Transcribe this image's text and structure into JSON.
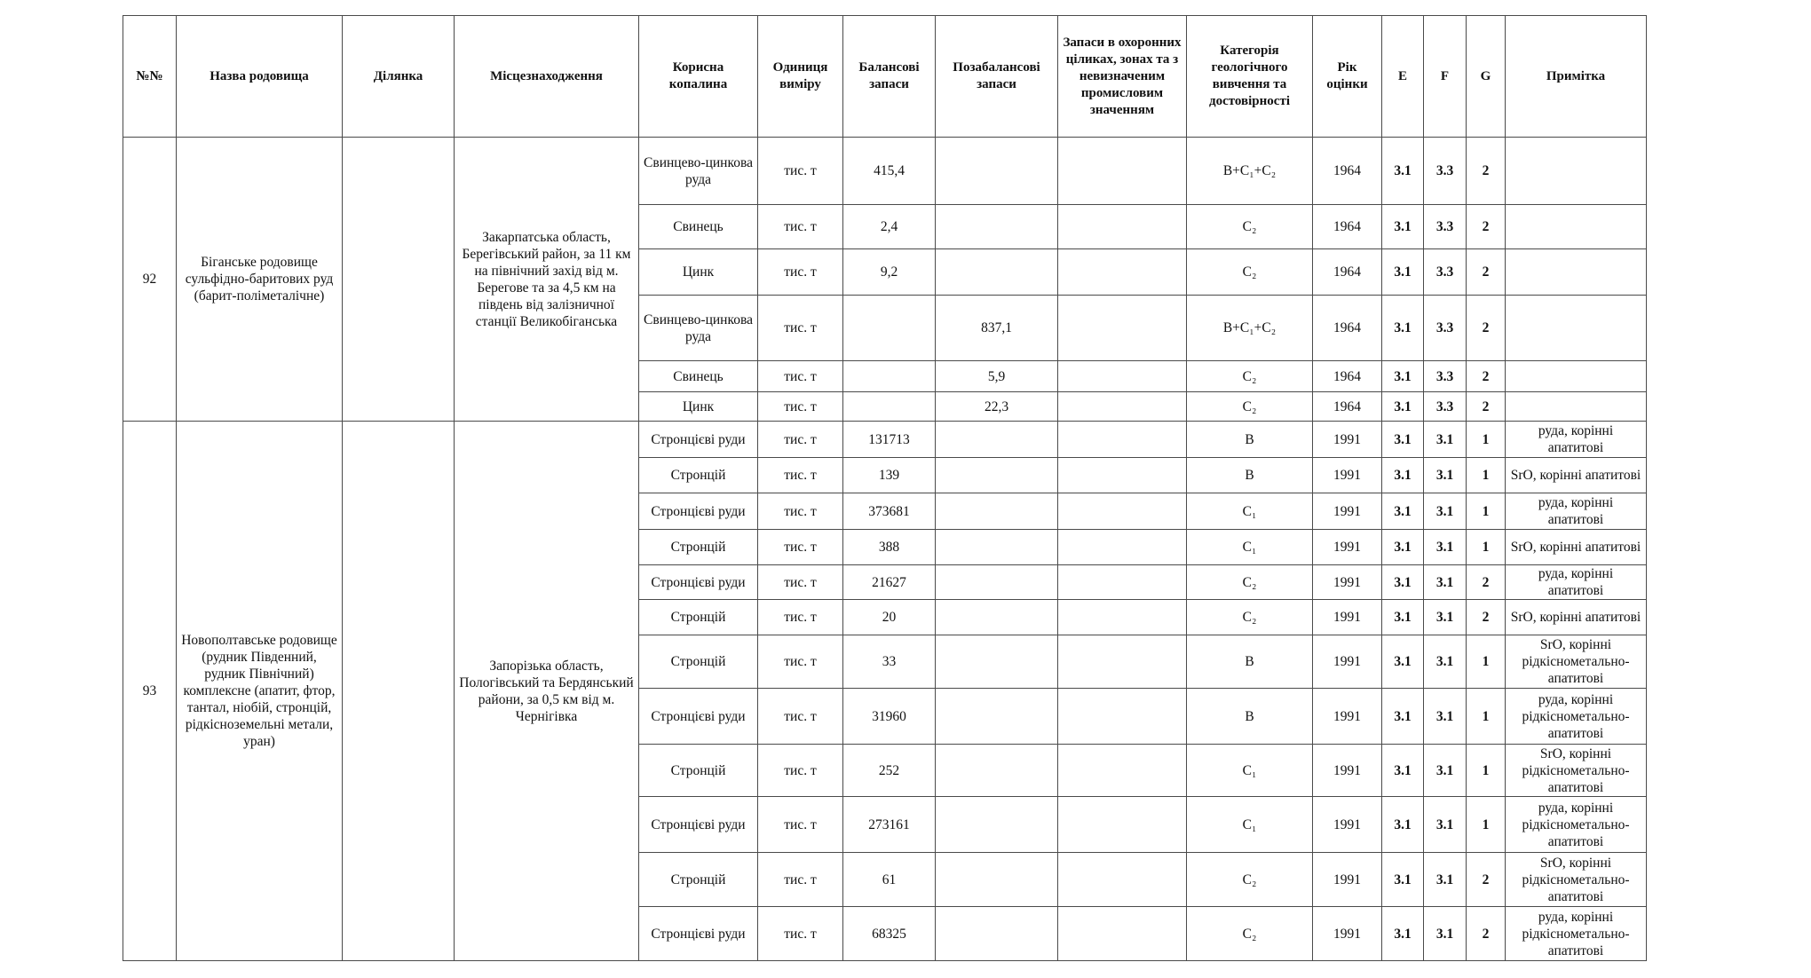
{
  "headers": [
    "№№",
    "Назва родовища",
    "Ділянка",
    "Місцезнаходження",
    "Корисна копалина",
    "Одиниця виміру",
    "Балансові запаси",
    "Позабалансові запаси",
    "Запаси в охоронних ціликах, зонах та з невизначеним промисловим значенням",
    "Категорія геологічного вивчення та достовірності",
    "Рік оцінки",
    "E",
    "F",
    "G",
    "Примітка"
  ],
  "groups": [
    {
      "number": "92",
      "name": "Біганське родовище сульфідно-баритових руд (барит-поліметалічне)",
      "plot": "",
      "location": "Закарпатська область, Берегівський район,  за 11 км на північний захід від м. Берегове та за 4,5 км на південь від залізничної станції Великобіганська",
      "rows": [
        {
          "mineral": "Свинцево-цинкова руда",
          "unit": "тис. т",
          "balance": "415,4",
          "offbalance": "",
          "protected": "",
          "category": "B+C₁+C₂",
          "year": "1964",
          "e": "3.1",
          "f": "3.3",
          "g": "2",
          "note": ""
        },
        {
          "mineral": "Свинець",
          "unit": "тис. т",
          "balance": "2,4",
          "offbalance": "",
          "protected": "",
          "category": "C₂",
          "year": "1964",
          "e": "3.1",
          "f": "3.3",
          "g": "2",
          "note": ""
        },
        {
          "mineral": "Цинк",
          "unit": "тис. т",
          "balance": "9,2",
          "offbalance": "",
          "protected": "",
          "category": "C₂",
          "year": "1964",
          "e": "3.1",
          "f": "3.3",
          "g": "2",
          "note": ""
        },
        {
          "mineral": "Свинцево-цинкова руда",
          "unit": "тис. т",
          "balance": "",
          "offbalance": "837,1",
          "protected": "",
          "category": "B+C₁+C₂",
          "year": "1964",
          "e": "3.1",
          "f": "3.3",
          "g": "2",
          "note": ""
        },
        {
          "mineral": "Свинець",
          "unit": "тис. т",
          "balance": "",
          "offbalance": "5,9",
          "protected": "",
          "category": "C₂",
          "year": "1964",
          "e": "3.1",
          "f": "3.3",
          "g": "2",
          "note": ""
        },
        {
          "mineral": "Цинк",
          "unit": "тис. т",
          "balance": "",
          "offbalance": "22,3",
          "protected": "",
          "category": "C₂",
          "year": "1964",
          "e": "3.1",
          "f": "3.3",
          "g": "2",
          "note": ""
        }
      ]
    },
    {
      "number": "93",
      "name": "Новополтавське родовище (рудник Південний, рудник Північний) комплексне (апатит, фтор, тантал, ніобій, стронцій, рідкісноземельні метали, уран)",
      "plot": "",
      "location": "Запорізька область, Пологівський та Бердянський  райони, за 0,5 км від  м. Чернігівка",
      "rows": [
        {
          "mineral": "Стронцієві руди",
          "unit": "тис. т",
          "balance": "131713",
          "offbalance": "",
          "protected": "",
          "category": "B",
          "year": "1991",
          "e": "3.1",
          "f": "3.1",
          "g": "1",
          "note": "руда, корінні апатитові"
        },
        {
          "mineral": "Стронцій",
          "unit": "тис. т",
          "balance": "139",
          "offbalance": "",
          "protected": "",
          "category": "B",
          "year": "1991",
          "e": "3.1",
          "f": "3.1",
          "g": "1",
          "note": "SrO, корінні апатитові"
        },
        {
          "mineral": "Стронцієві руди",
          "unit": "тис. т",
          "balance": "373681",
          "offbalance": "",
          "protected": "",
          "category": "C₁",
          "year": "1991",
          "e": "3.1",
          "f": "3.1",
          "g": "1",
          "note": "руда, корінні апатитові"
        },
        {
          "mineral": "Стронцій",
          "unit": "тис. т",
          "balance": "388",
          "offbalance": "",
          "protected": "",
          "category": "C₁",
          "year": "1991",
          "e": "3.1",
          "f": "3.1",
          "g": "1",
          "note": "SrO, корінні апатитові"
        },
        {
          "mineral": "Стронцієві руди",
          "unit": "тис. т",
          "balance": "21627",
          "offbalance": "",
          "protected": "",
          "category": "C₂",
          "year": "1991",
          "e": "3.1",
          "f": "3.1",
          "g": "2",
          "note": "руда, корінні апатитові"
        },
        {
          "mineral": "Стронцій",
          "unit": "тис. т",
          "balance": "20",
          "offbalance": "",
          "protected": "",
          "category": "C₂",
          "year": "1991",
          "e": "3.1",
          "f": "3.1",
          "g": "2",
          "note": "SrO, корінні апатитові"
        },
        {
          "mineral": "Стронцій",
          "unit": "тис. т",
          "balance": "33",
          "offbalance": "",
          "protected": "",
          "category": "B",
          "year": "1991",
          "e": "3.1",
          "f": "3.1",
          "g": "1",
          "note": "SrO, корінні рідкіснометально-апатитові"
        },
        {
          "mineral": "Стронцієві руди",
          "unit": "тис. т",
          "balance": "31960",
          "offbalance": "",
          "protected": "",
          "category": "B",
          "year": "1991",
          "e": "3.1",
          "f": "3.1",
          "g": "1",
          "note": "руда, корінні рідкіснометально-апатитові"
        },
        {
          "mineral": "Стронцій",
          "unit": "тис. т",
          "balance": "252",
          "offbalance": "",
          "protected": "",
          "category": "C₁",
          "year": "1991",
          "e": "3.1",
          "f": "3.1",
          "g": "1",
          "note": "SrO, корінні рідкіснометально-апатитові"
        },
        {
          "mineral": "Стронцієві руди",
          "unit": "тис. т",
          "balance": "273161",
          "offbalance": "",
          "protected": "",
          "category": "C₁",
          "year": "1991",
          "e": "3.1",
          "f": "3.1",
          "g": "1",
          "note": "руда, корінні рідкіснометально-апатитові"
        },
        {
          "mineral": "Стронцій",
          "unit": "тис. т",
          "balance": "61",
          "offbalance": "",
          "protected": "",
          "category": "C₂",
          "year": "1991",
          "e": "3.1",
          "f": "3.1",
          "g": "2",
          "note": "SrO, корінні рідкіснометально-апатитові"
        },
        {
          "mineral": "Стронцієві руди",
          "unit": "тис. т",
          "balance": "68325",
          "offbalance": "",
          "protected": "",
          "category": "C₂",
          "year": "1991",
          "e": "3.1",
          "f": "3.1",
          "g": "2",
          "note": "руда, корінні рідкіснометально-апатитові"
        }
      ]
    }
  ]
}
